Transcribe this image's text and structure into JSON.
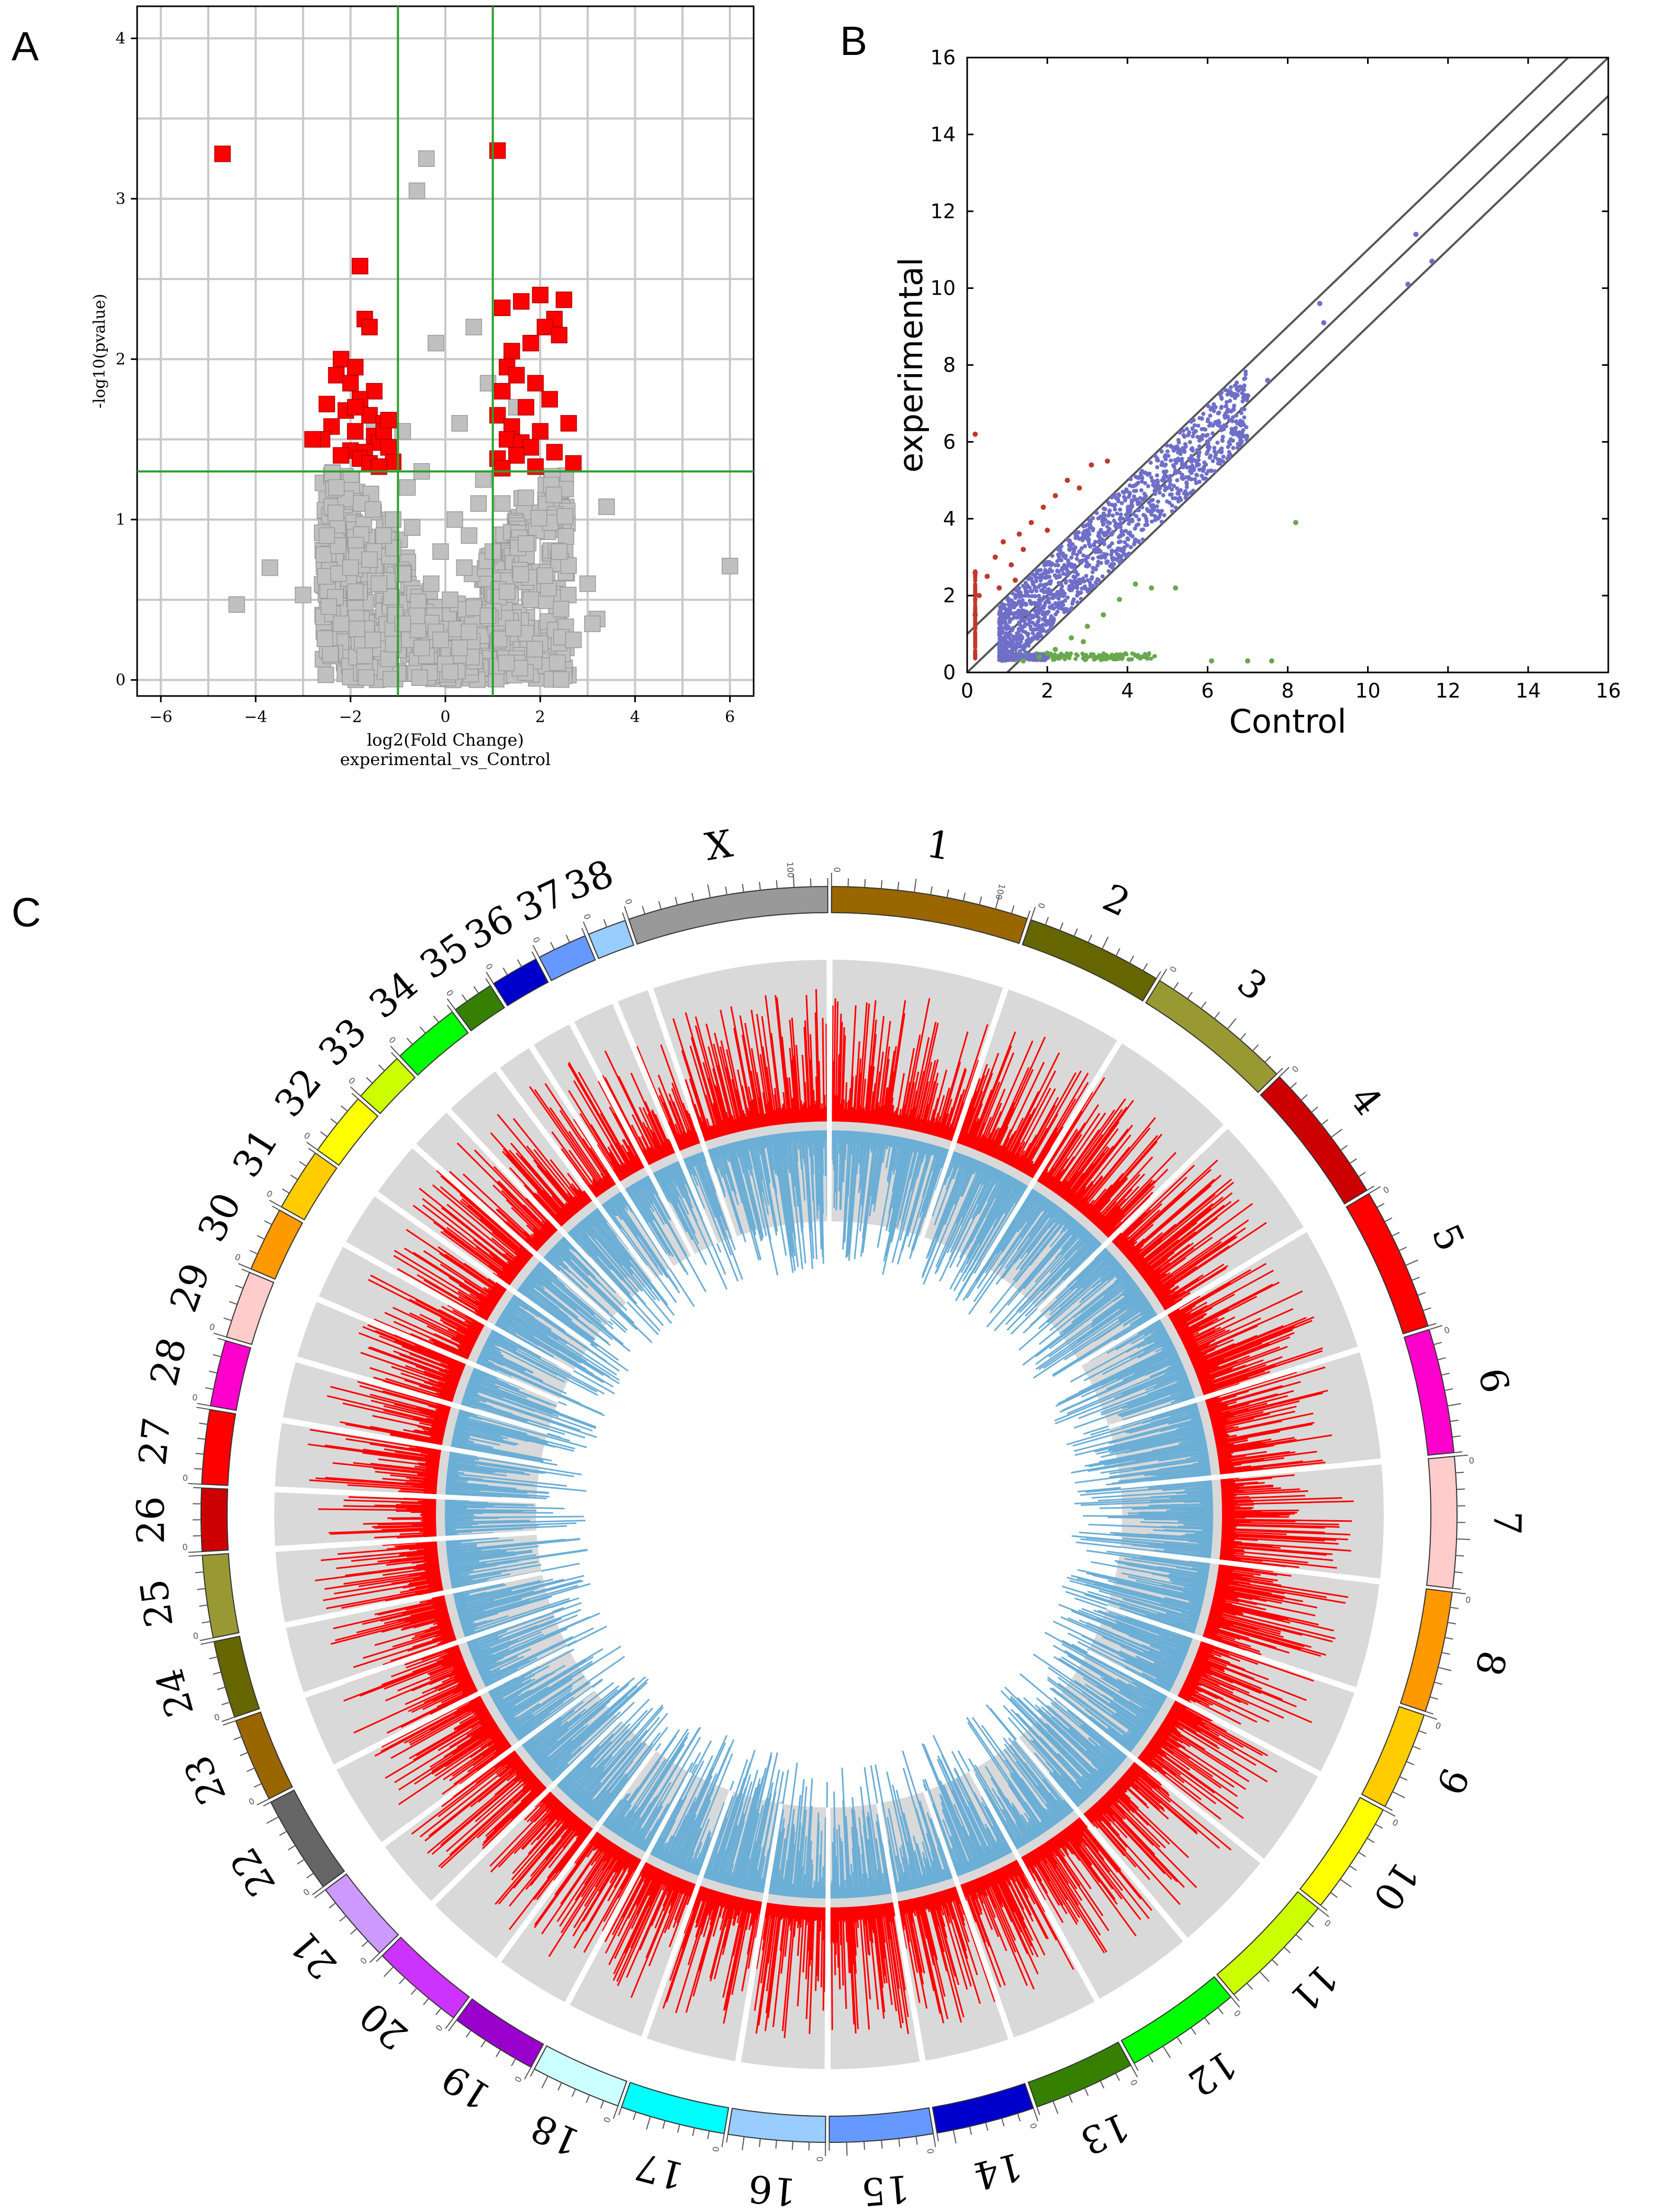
{
  "panels": {
    "A": {
      "letter": "A"
    },
    "B": {
      "letter": "B"
    },
    "C": {
      "letter": "C"
    }
  },
  "chart_data": [
    {
      "id": "volcano",
      "type": "scatter",
      "title": "",
      "xlabel": "log2(Fold Change)",
      "xlabel2": "experimental_vs_Control",
      "ylabel": "-log10(pvalue)",
      "xlim": [
        -6.5,
        6.5
      ],
      "ylim": [
        -0.1,
        4.2
      ],
      "xticks": [
        -6,
        -4,
        -2,
        0,
        2,
        4,
        6
      ],
      "yticks": [
        0,
        1,
        2,
        3,
        4
      ],
      "grid": true,
      "thresholds": {
        "x": [
          -1,
          1
        ],
        "y": 1.3
      },
      "colors": {
        "significant": "#ff0000",
        "other": "#c0c0c0",
        "threshold": "#2ca02c",
        "grid": "#c8c8c8"
      },
      "series": [
        {
          "name": "significant",
          "x": [
            -4.7,
            1.1,
            -1.8,
            -1.7,
            -1.6,
            -2.2,
            -1.9,
            -2.3,
            -2.0,
            -1.5,
            -1.8,
            -2.5,
            -2.1,
            -1.6,
            -1.3,
            -2.4,
            -1.9,
            -1.5,
            -2.6,
            -1.4,
            -1.2,
            -2.0,
            -1.7,
            -2.2,
            -1.8,
            -1.1,
            -2.8,
            -1.6,
            -1.4,
            -1.3,
            -1.9,
            -1.2,
            1.2,
            1.6,
            2.0,
            2.5,
            2.3,
            1.4,
            1.8,
            2.1,
            1.3,
            1.5,
            2.4,
            1.9,
            1.2,
            2.2,
            1.7,
            1.1,
            2.6,
            1.4,
            2.0,
            1.3,
            1.6,
            1.8,
            2.3,
            1.5,
            1.1,
            2.7,
            1.9,
            1.2
          ],
          "y": [
            3.28,
            3.3,
            2.58,
            2.25,
            2.2,
            2.0,
            1.95,
            1.9,
            1.85,
            1.8,
            1.75,
            1.72,
            1.68,
            1.65,
            1.6,
            1.58,
            1.55,
            1.52,
            1.5,
            1.48,
            1.45,
            1.43,
            1.42,
            1.4,
            1.38,
            1.36,
            1.5,
            1.35,
            1.33,
            1.55,
            1.7,
            1.62,
            2.32,
            2.36,
            2.4,
            2.37,
            2.25,
            2.05,
            2.1,
            2.2,
            1.95,
            1.9,
            2.15,
            1.85,
            1.8,
            1.75,
            1.7,
            1.65,
            1.6,
            1.58,
            1.55,
            1.5,
            1.48,
            1.45,
            1.42,
            1.4,
            1.38,
            1.35,
            1.33,
            1.32
          ]
        },
        {
          "name": "other",
          "x": [
            -0.6,
            -0.4,
            -1.5,
            1.5,
            -4.4,
            -3.7,
            -3.0,
            3.4,
            3.0,
            6.0,
            3.2,
            2.7,
            3.1,
            -2.3,
            -2.2,
            -0.2,
            0.6,
            -0.9,
            0.9,
            -0.5,
            0.3,
            -0.1,
            0.2,
            0.5,
            -0.3,
            0.7,
            -0.7,
            0.1,
            0.4,
            -0.8,
            0.8,
            -1.1,
            1.0,
            -1.3,
            1.2,
            -1.6,
            1.7,
            -2.0,
            2.1,
            -0.2,
            0.0,
            0.3,
            -0.4,
            -0.6,
            0.6,
            0.1,
            -0.1,
            -1.9,
            1.8,
            -1.4,
            1.3,
            -0.9,
            0.9,
            0.5,
            -0.5,
            -2.5,
            2.4
          ],
          "y": [
            3.05,
            3.25,
            1.6,
            1.7,
            0.47,
            0.7,
            0.53,
            1.08,
            0.6,
            0.71,
            0.38,
            0.25,
            0.35,
            1.2,
            0.35,
            2.1,
            2.2,
            1.55,
            1.85,
            1.3,
            1.6,
            0.8,
            1.0,
            0.9,
            0.6,
            1.1,
            0.95,
            0.5,
            0.7,
            1.2,
            1.25,
            1.0,
            0.8,
            0.9,
            1.1,
            0.75,
            0.85,
            0.7,
            0.65,
            0.3,
            0.1,
            0.2,
            0.15,
            0.4,
            0.45,
            0.05,
            0.25,
            0.55,
            0.5,
            0.6,
            0.55,
            0.35,
            0.4,
            0.3,
            0.2,
            0.9,
            0.8
          ]
        }
      ]
    },
    {
      "id": "scatter",
      "type": "scatter",
      "title": "",
      "xlabel": "Control",
      "ylabel": "experimental",
      "xlim": [
        0,
        16
      ],
      "ylim": [
        0,
        16
      ],
      "xticks": [
        0,
        2,
        4,
        6,
        8,
        10,
        12,
        14,
        16
      ],
      "yticks": [
        0,
        2,
        4,
        6,
        8,
        10,
        12,
        14,
        16
      ],
      "grid": false,
      "diagonals": [
        {
          "intercept": 1
        },
        {
          "intercept": 0
        },
        {
          "intercept": -1
        }
      ],
      "colors": {
        "up": "#c0392b",
        "neutral": "#6f6fc8",
        "down": "#6aa84f",
        "line": "#555555"
      },
      "series": [
        {
          "name": "up",
          "x": [
            0.2,
            0.2,
            0.2,
            0.3,
            0.5,
            0.7,
            0.9,
            1.1,
            1.3,
            1.6,
            1.9,
            2.2,
            2.5,
            2.8,
            3.1,
            3.5,
            2.0,
            1.4,
            0.8,
            1.2
          ],
          "y": [
            6.2,
            2.6,
            1.5,
            2.0,
            2.5,
            3.0,
            3.4,
            2.8,
            3.6,
            3.9,
            4.3,
            4.6,
            5.0,
            4.8,
            5.4,
            5.5,
            3.7,
            3.2,
            2.2,
            2.4
          ]
        },
        {
          "name": "neutral",
          "x": [
            1.0,
            1.3,
            1.6,
            2.0,
            2.3,
            2.6,
            3.0,
            3.3,
            3.6,
            4.0,
            4.4,
            4.8,
            5.2,
            5.6,
            6.0,
            6.5,
            7.0,
            7.5,
            8.8,
            8.9,
            11.0,
            11.2,
            11.6,
            2.8,
            3.8,
            4.6,
            5.4,
            6.2,
            1.8,
            2.4
          ],
          "y": [
            1.0,
            1.5,
            1.8,
            2.1,
            2.5,
            2.8,
            3.0,
            3.4,
            3.6,
            4.0,
            4.5,
            4.8,
            5.2,
            5.5,
            6.0,
            6.8,
            7.2,
            7.6,
            9.6,
            9.1,
            10.1,
            11.4,
            10.7,
            2.4,
            3.2,
            4.2,
            5.8,
            6.5,
            1.2,
            2.0
          ]
        },
        {
          "name": "down",
          "x": [
            1.4,
            1.8,
            2.2,
            2.6,
            3.0,
            3.4,
            3.8,
            4.2,
            4.6,
            5.2,
            6.1,
            7.0,
            7.6,
            8.2,
            2.0,
            2.9
          ],
          "y": [
            0.3,
            0.4,
            0.6,
            0.9,
            1.2,
            1.5,
            1.9,
            2.3,
            2.2,
            2.2,
            0.3,
            0.3,
            0.3,
            3.9,
            0.5,
            0.8
          ]
        }
      ]
    },
    {
      "id": "circos",
      "type": "circos",
      "title": "",
      "chromosomes": [
        "1",
        "2",
        "3",
        "4",
        "5",
        "6",
        "7",
        "8",
        "9",
        "10",
        "11",
        "12",
        "13",
        "14",
        "15",
        "16",
        "17",
        "18",
        "19",
        "20",
        "21",
        "22",
        "23",
        "24",
        "25",
        "26",
        "27",
        "28",
        "29",
        "30",
        "31",
        "32",
        "33",
        "34",
        "35",
        "36",
        "37",
        "38",
        "X"
      ],
      "lengths": [
        122,
        85,
        92,
        88,
        89,
        77,
        81,
        75,
        61,
        70,
        74,
        72,
        63,
        61,
        64,
        60,
        65,
        56,
        54,
        58,
        51,
        61,
        52,
        48,
        51,
        39,
        46,
        41,
        42,
        40,
        39,
        40,
        32,
        42,
        26,
        30,
        31,
        24,
        124
      ],
      "colors": [
        "#996600",
        "#666600",
        "#999933",
        "#cc0000",
        "#ff0000",
        "#ff00cc",
        "#ffcccc",
        "#ff9900",
        "#ffcc00",
        "#ffff00",
        "#ccff00",
        "#00ff00",
        "#358000",
        "#0000cc",
        "#6699ff",
        "#99ccff",
        "#00ffff",
        "#ccffff",
        "#9900cc",
        "#cc33ff",
        "#cc99ff",
        "#666666",
        "#996600",
        "#666600",
        "#999933",
        "#cc0000",
        "#ff0000",
        "#ff00cc",
        "#ffcccc",
        "#ff9900",
        "#ffcc00",
        "#ffff00",
        "#ccff00",
        "#00ff00",
        "#358000",
        "#0000cc",
        "#6699ff",
        "#99ccff",
        "#999999"
      ],
      "tick_labels": [
        "0",
        "100"
      ],
      "tracks": [
        {
          "name": "outer-histogram",
          "color": "#ff0000"
        },
        {
          "name": "inner-histogram",
          "color": "#6baed6"
        }
      ]
    }
  ]
}
